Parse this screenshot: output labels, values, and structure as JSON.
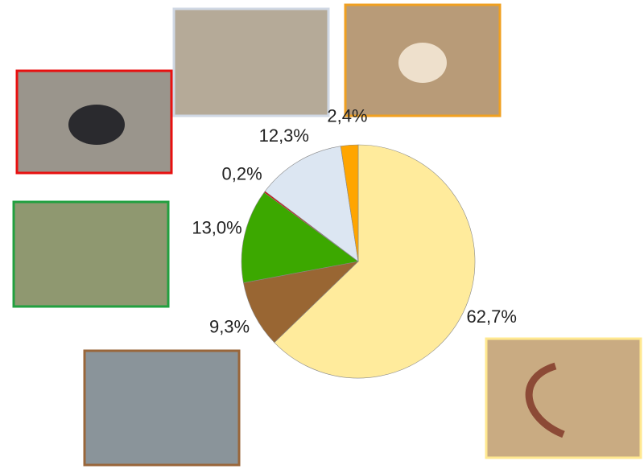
{
  "chart_data": {
    "type": "pie",
    "categories": [
      null,
      null,
      null,
      null,
      null,
      null
    ],
    "values": [
      62.7,
      9.3,
      13.0,
      0.2,
      12.3,
      2.4
    ],
    "value_labels": [
      "62,7%",
      "9,3%",
      "13,0%",
      "0,2%",
      "12,3%",
      "2,4%"
    ],
    "colors": [
      "#ffeb9c",
      "#996633",
      "#3ca800",
      "#e00000",
      "#dce6f2",
      "#ffa500"
    ]
  }
}
